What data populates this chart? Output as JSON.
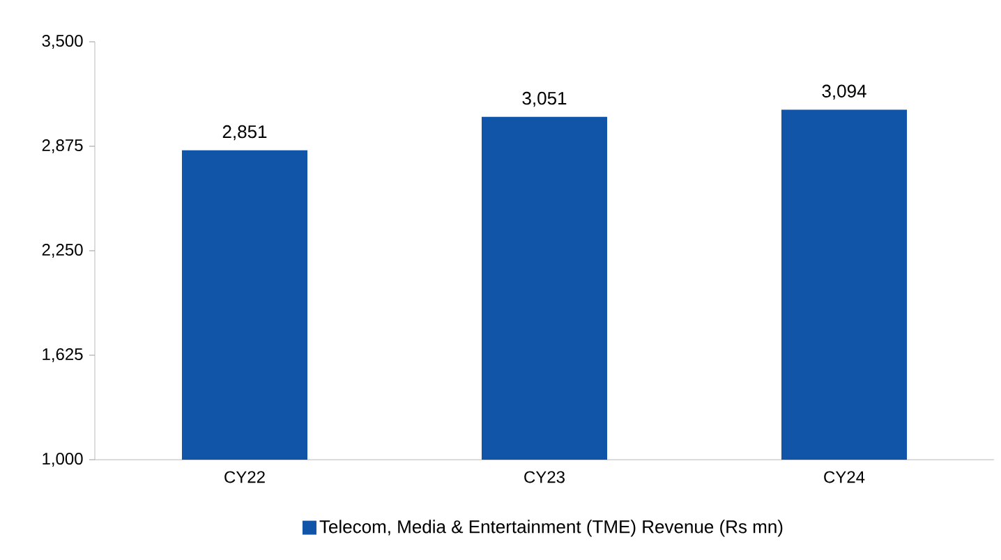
{
  "chart_data": {
    "type": "bar",
    "categories": [
      "CY22",
      "CY23",
      "CY24"
    ],
    "series": [
      {
        "name": "Telecom, Media & Entertainment (TME) Revenue (Rs mn)",
        "color": "#1155a8",
        "values": [
          2851,
          3051,
          3094
        ],
        "value_labels": [
          "2,851",
          "3,051",
          "3,094"
        ]
      }
    ],
    "ylim": [
      1000,
      3500
    ],
    "yticks": [
      {
        "value": 1000,
        "label": "1,000"
      },
      {
        "value": 1625,
        "label": "1,625"
      },
      {
        "value": 2250,
        "label": "2,250"
      },
      {
        "value": 2875,
        "label": "2,875"
      },
      {
        "value": 3500,
        "label": "3,500"
      }
    ],
    "grid": false,
    "legend": "bottom"
  }
}
